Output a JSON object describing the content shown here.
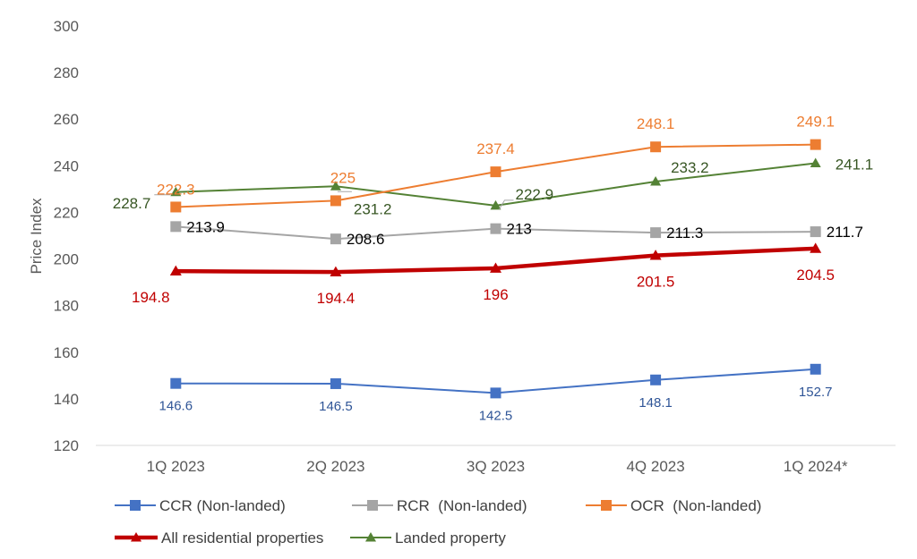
{
  "chart_data": {
    "type": "line",
    "title": "",
    "xlabel": "",
    "ylabel": "Price Index",
    "ylim": [
      120,
      300
    ],
    "yticks": [
      120,
      140,
      160,
      180,
      200,
      220,
      240,
      260,
      280,
      300
    ],
    "grid": false,
    "legend_position": "bottom",
    "categories": [
      "1Q 2023",
      "2Q 2023",
      "3Q 2023",
      "4Q 2023",
      "1Q 2024*"
    ],
    "series": [
      {
        "name": "CCR (Non-landed)",
        "values": [
          146.6,
          146.5,
          142.5,
          148.1,
          152.7
        ],
        "color": "#4472C4",
        "marker": "square",
        "label_color": "#2F5597"
      },
      {
        "name": "RCR  (Non-landed)",
        "values": [
          213.9,
          208.6,
          213,
          211.3,
          211.7
        ],
        "color": "#A5A5A5",
        "marker": "square",
        "label_color": "#000000"
      },
      {
        "name": "OCR  (Non-landed)",
        "values": [
          222.3,
          225,
          237.4,
          248.1,
          249.1
        ],
        "color": "#ED7D31",
        "marker": "square",
        "label_color": "#ED7D31"
      },
      {
        "name": "All residential properties",
        "values": [
          194.8,
          194.4,
          196,
          201.5,
          204.5
        ],
        "color": "#C00000",
        "marker": "triangle",
        "label_color": "#C00000"
      },
      {
        "name": "Landed property",
        "values": [
          228.7,
          231.2,
          222.9,
          233.2,
          241.1
        ],
        "color": "#548235",
        "marker": "triangle",
        "label_color": "#375623"
      }
    ]
  }
}
